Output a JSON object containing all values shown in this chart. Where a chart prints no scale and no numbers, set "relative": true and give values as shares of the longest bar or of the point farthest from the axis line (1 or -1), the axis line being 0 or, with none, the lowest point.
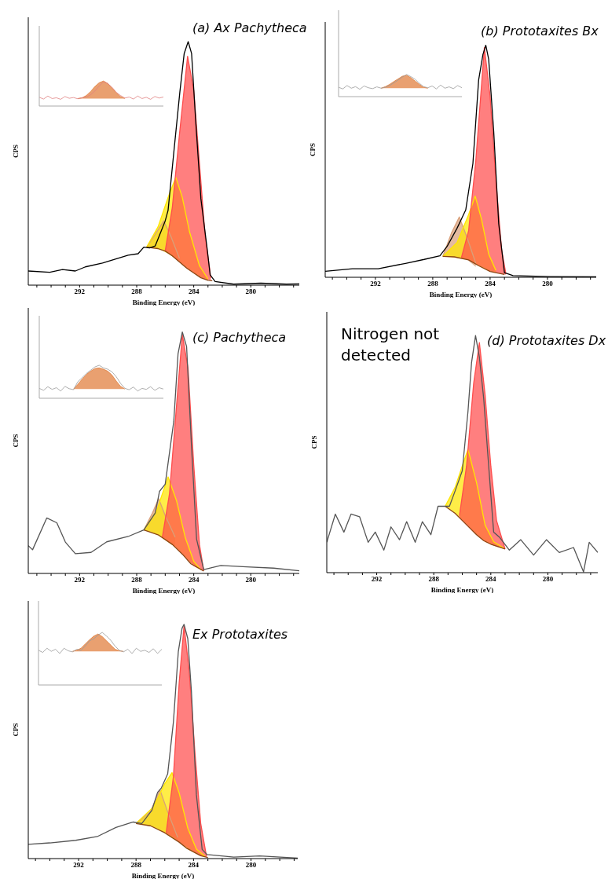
{
  "chart_data": [
    {
      "type": "line",
      "title": "(a) Ax Pachytheca",
      "xlabel": "Binding Energy (eV)",
      "ylabel": "CPS",
      "relative": true,
      "xlim": [
        295.6,
        276.6
      ],
      "xticks": [
        {
          "value": 295,
          "label": null
        },
        {
          "value": 294,
          "label": null
        },
        {
          "value": 293,
          "label": null
        },
        292,
        {
          "value": 291,
          "label": null
        },
        {
          "value": 290,
          "label": null
        },
        {
          "value": 289,
          "label": null
        },
        288,
        {
          "value": 287,
          "label": null
        },
        {
          "value": 286,
          "label": null
        },
        {
          "value": 285,
          "label": null
        },
        284,
        {
          "value": 283,
          "label": null
        },
        {
          "value": 282,
          "label": null
        },
        {
          "value": 281,
          "label": null
        },
        280,
        {
          "value": 279,
          "label": null
        },
        {
          "value": 278,
          "label": null
        },
        {
          "value": 277,
          "label": null
        }
      ],
      "series": [
        {
          "color": "#d9a07a",
          "x": [
            287.3,
            286.8,
            286.1,
            285.6,
            285.0
          ],
          "values": [
            0.156,
            0.2,
            0.264,
            0.2,
            0.11
          ],
          "upper": [
            0.156,
            0.2,
            0.264,
            0.2,
            0.11
          ],
          "lower": [
            0.156,
            0.153,
            0.14,
            0.124,
            0.095
          ]
        },
        {
          "color": "#ffe600",
          "x": [
            287.3,
            286.5,
            285.8,
            285.26,
            284.8,
            284.3,
            283.6,
            283.0
          ],
          "values": [
            0.156,
            0.24,
            0.36,
            0.443,
            0.36,
            0.22,
            0.08,
            0.025
          ],
          "upper": [
            0.156,
            0.24,
            0.36,
            0.443,
            0.36,
            0.22,
            0.08,
            0.025
          ],
          "lower": [
            0.156,
            0.15,
            0.13,
            0.108,
            0.085,
            0.062,
            0.034,
            0.02
          ]
        },
        {
          "color": "#ff4d4d",
          "x": [
            286.0,
            285.5,
            285.0,
            284.43,
            284.0,
            283.6,
            283.2,
            282.8
          ],
          "values": [
            0.14,
            0.32,
            0.62,
            0.94,
            0.8,
            0.5,
            0.2,
            0.03
          ],
          "upper": [
            0.14,
            0.32,
            0.62,
            0.94,
            0.8,
            0.5,
            0.2,
            0.03
          ],
          "lower": [
            0.14,
            0.12,
            0.095,
            0.067,
            0.05,
            0.034,
            0.024,
            0.019
          ]
        },
        {
          "color": "#8b4513",
          "x": [
            287.3,
            286.5,
            286,
            285.5,
            285,
            284.5,
            284,
            283.5,
            283,
            282.7
          ],
          "values": [
            0.156,
            0.15,
            0.14,
            0.12,
            0.095,
            0.07,
            0.05,
            0.03,
            0.02,
            0.018
          ]
        },
        {
          "color": "#000000",
          "x": [
            295.6,
            294.1,
            293.2,
            292.3,
            291.6,
            290.4,
            289.5,
            288.6,
            287.9,
            287.5,
            287.1,
            286.7,
            286.4,
            286.0,
            285.8,
            285.35,
            284.98,
            284.67,
            284.39,
            284.15,
            283.87,
            283.5,
            283.04,
            282.85,
            282.5,
            281.2,
            279.3,
            277.5,
            276.6
          ],
          "values": [
            0.058,
            0.053,
            0.064,
            0.058,
            0.075,
            0.091,
            0.107,
            0.123,
            0.129,
            0.156,
            0.153,
            0.161,
            0.205,
            0.264,
            0.307,
            0.573,
            0.789,
            0.951,
            1.0,
            0.951,
            0.681,
            0.356,
            0.14,
            0.042,
            0.015,
            0.004,
            0.008,
            0.004,
            0.005
          ]
        }
      ]
    },
    {
      "type": "line",
      "relative": true,
      "categories": [
        null,
        null,
        null,
        null,
        null,
        null,
        null,
        null,
        null,
        null,
        null,
        null,
        null,
        null,
        null,
        null,
        null,
        null,
        null,
        null,
        null,
        null,
        null,
        null,
        null,
        null,
        null,
        null,
        null,
        null
      ],
      "series": [
        {
          "color": "#e07b39",
          "values": [
            null,
            null,
            null,
            null,
            null,
            null,
            null,
            null,
            null,
            0.3,
            0.33,
            0.42,
            0.58,
            0.78,
            0.93,
            1.0,
            0.9,
            0.72,
            0.52,
            0.38,
            0.3,
            null,
            null,
            null,
            null,
            null,
            null,
            null,
            null,
            null
          ],
          "upper": [
            null,
            null,
            null,
            null,
            null,
            null,
            null,
            null,
            null,
            0.3,
            0.33,
            0.42,
            0.58,
            0.78,
            0.93,
            1.0,
            0.9,
            0.72,
            0.52,
            0.38,
            0.3,
            null,
            null,
            null,
            null,
            null,
            null,
            null,
            null,
            null
          ],
          "lower": [
            null,
            null,
            null,
            null,
            null,
            null,
            null,
            null,
            null,
            0.3,
            0.3,
            0.3,
            0.3,
            0.3,
            0.3,
            0.3,
            0.3,
            0.3,
            0.3,
            0.3,
            0.3,
            null,
            null,
            null,
            null,
            null,
            null,
            null,
            null,
            null
          ]
        },
        {
          "color": "#e08080",
          "values": [
            0.35,
            0.28,
            0.4,
            0.3,
            0.33,
            0.27,
            0.38,
            0.31,
            0.34,
            0.29,
            0.33,
            0.36,
            0.45,
            0.6,
            0.8,
            0.97,
            0.9,
            0.75,
            0.55,
            0.42,
            0.32,
            0.36,
            0.28,
            0.4,
            0.3,
            0.35,
            0.27,
            0.38,
            0.32,
            0.36
          ]
        }
      ]
    },
    {
      "type": "line",
      "title": "(b) Prototaxites Bx",
      "xlabel": "Binding Energy (eV)",
      "ylabel": "CPS",
      "relative": true,
      "xlim": [
        295.5,
        276.6
      ],
      "xticks": [
        {
          "value": 295,
          "label": null
        },
        {
          "value": 294,
          "label": null
        },
        {
          "value": 293,
          "label": null
        },
        292,
        {
          "value": 291,
          "label": null
        },
        {
          "value": 290,
          "label": null
        },
        {
          "value": 289,
          "label": null
        },
        288,
        {
          "value": 287,
          "label": null
        },
        {
          "value": 286,
          "label": null
        },
        {
          "value": 285,
          "label": null
        },
        284,
        {
          "value": 283,
          "label": null
        },
        {
          "value": 282,
          "label": null
        },
        {
          "value": 281,
          "label": null
        },
        280,
        {
          "value": 279,
          "label": null
        },
        {
          "value": 278,
          "label": null
        },
        {
          "value": 277,
          "label": null
        }
      ],
      "series": [
        {
          "color": "#d9a07a",
          "x": [
            287.3,
            286.7,
            286.15,
            285.6,
            285.0
          ],
          "values": [
            0.09,
            0.19,
            0.26,
            0.17,
            0.06
          ],
          "upper": [
            0.09,
            0.19,
            0.26,
            0.17,
            0.06
          ],
          "lower": [
            0.09,
            0.088,
            0.082,
            0.076,
            0.045
          ]
        },
        {
          "color": "#ffe600",
          "x": [
            287.3,
            286.3,
            285.5,
            285.04,
            284.6,
            284.1,
            283.6
          ],
          "values": [
            0.09,
            0.15,
            0.27,
            0.35,
            0.25,
            0.1,
            0.03
          ],
          "upper": [
            0.09,
            0.15,
            0.27,
            0.35,
            0.25,
            0.1,
            0.03
          ],
          "lower": [
            0.09,
            0.085,
            0.075,
            0.058,
            0.044,
            0.028,
            0.02
          ]
        },
        {
          "color": "#ff4d4d",
          "x": [
            286.0,
            285.5,
            285.0,
            284.4,
            284.0,
            283.6,
            283.2,
            282.9
          ],
          "values": [
            0.085,
            0.2,
            0.5,
            0.99,
            0.78,
            0.42,
            0.12,
            0.015
          ],
          "upper": [
            0.085,
            0.2,
            0.5,
            0.99,
            0.78,
            0.42,
            0.12,
            0.015
          ],
          "lower": [
            0.082,
            0.075,
            0.057,
            0.04,
            0.025,
            0.02,
            0.014,
            0.012
          ]
        },
        {
          "color": "#8b4513",
          "x": [
            287.3,
            286.5,
            285.5,
            284.8,
            284,
            283
          ],
          "values": [
            0.09,
            0.088,
            0.075,
            0.05,
            0.025,
            0.012
          ]
        },
        {
          "color": "#000000",
          "x": [
            295.5,
            293.6,
            291.8,
            289.9,
            288.6,
            287.5,
            287.0,
            286.3,
            285.7,
            285.2,
            284.8,
            284.5,
            284.3,
            284.1,
            283.75,
            283.4,
            283.0,
            282.4,
            279.8,
            276.6
          ],
          "values": [
            0.026,
            0.037,
            0.037,
            0.06,
            0.077,
            0.093,
            0.133,
            0.212,
            0.29,
            0.49,
            0.85,
            0.96,
            1.0,
            0.94,
            0.63,
            0.23,
            0.02,
            0.007,
            0.003,
            0.002
          ]
        }
      ]
    },
    {
      "type": "line",
      "relative": true,
      "categories": [
        null,
        null,
        null,
        null,
        null,
        null,
        null,
        null,
        null,
        null,
        null,
        null,
        null,
        null,
        null,
        null,
        null,
        null,
        null,
        null,
        null,
        null,
        null,
        null,
        null,
        null,
        null,
        null,
        null,
        null
      ],
      "series": [
        {
          "color": "#e07b39",
          "values": [
            null,
            null,
            null,
            null,
            null,
            null,
            null,
            null,
            null,
            null,
            0.38,
            0.45,
            0.55,
            0.68,
            0.8,
            0.92,
            0.96,
            0.85,
            0.7,
            0.55,
            0.42,
            0.38,
            null,
            null,
            null,
            null,
            null,
            null,
            null,
            null
          ],
          "upper": [
            null,
            null,
            null,
            null,
            null,
            null,
            null,
            null,
            null,
            null,
            0.38,
            0.45,
            0.55,
            0.68,
            0.8,
            0.92,
            0.96,
            0.85,
            0.7,
            0.55,
            0.42,
            0.38,
            null,
            null,
            null,
            null,
            null,
            null,
            null,
            null
          ],
          "lower": [
            null,
            null,
            null,
            null,
            null,
            null,
            null,
            null,
            null,
            null,
            0.38,
            0.38,
            0.38,
            0.38,
            0.38,
            0.38,
            0.38,
            0.38,
            0.38,
            0.38,
            0.38,
            0.38,
            null,
            null,
            null,
            null,
            null,
            null,
            null,
            null
          ]
        },
        {
          "color": "#999999",
          "values": [
            0.42,
            0.35,
            0.5,
            0.38,
            0.45,
            0.33,
            0.48,
            0.4,
            0.36,
            0.44,
            0.38,
            0.42,
            0.5,
            0.62,
            0.75,
            0.88,
            1.0,
            0.9,
            0.78,
            0.6,
            0.45,
            0.4,
            0.48,
            0.35,
            0.52,
            0.38,
            0.44,
            0.36,
            0.5,
            0.4
          ]
        }
      ]
    },
    {
      "type": "line",
      "title": "(c) Pachytheca",
      "xlabel": "Binding Energy (eV)",
      "ylabel": "CPS",
      "relative": true,
      "xlim": [
        295.6,
        276.6
      ],
      "xticks": [
        {
          "value": 295,
          "label": null
        },
        {
          "value": 294,
          "label": null
        },
        {
          "value": 293,
          "label": null
        },
        292,
        {
          "value": 291,
          "label": null
        },
        {
          "value": 290,
          "label": null
        },
        {
          "value": 289,
          "label": null
        },
        288,
        {
          "value": 287,
          "label": null
        },
        {
          "value": 286,
          "label": null
        },
        {
          "value": 285,
          "label": null
        },
        284,
        {
          "value": 283,
          "label": null
        },
        {
          "value": 282,
          "label": null
        },
        {
          "value": 281,
          "label": null
        },
        280,
        {
          "value": 279,
          "label": null
        },
        {
          "value": 278,
          "label": null
        },
        {
          "value": 277,
          "label": null
        }
      ],
      "series": [
        {
          "color": "#d9a07a",
          "x": [
            287.5,
            286.9,
            286.46,
            286.0,
            285.3
          ],
          "values": [
            0.18,
            0.25,
            0.31,
            0.24,
            0.15
          ],
          "upper": [
            0.18,
            0.25,
            0.31,
            0.24,
            0.15
          ],
          "lower": [
            0.18,
            0.17,
            0.16,
            0.14,
            0.11
          ]
        },
        {
          "color": "#ffe600",
          "x": [
            287.5,
            286.6,
            285.8,
            285.2,
            284.6,
            284.0,
            283.5
          ],
          "values": [
            0.18,
            0.26,
            0.4,
            0.3,
            0.15,
            0.05,
            0.015
          ],
          "upper": [
            0.18,
            0.26,
            0.4,
            0.3,
            0.15,
            0.05,
            0.015
          ],
          "lower": [
            0.18,
            0.162,
            0.13,
            0.105,
            0.068,
            0.033,
            0.014
          ]
        },
        {
          "color": "#ff4d4d",
          "x": [
            286.2,
            285.7,
            285.2,
            284.8,
            284.4,
            284.0,
            283.6,
            283.3
          ],
          "values": [
            0.15,
            0.33,
            0.7,
            0.99,
            0.85,
            0.45,
            0.12,
            0.012
          ],
          "upper": [
            0.15,
            0.33,
            0.7,
            0.99,
            0.85,
            0.45,
            0.12,
            0.012
          ],
          "lower": [
            0.148,
            0.128,
            0.105,
            0.08,
            0.055,
            0.03,
            0.018,
            0.01
          ]
        },
        {
          "color": "#8b4513",
          "x": [
            287.5,
            286.5,
            285.5,
            284.8,
            284.2,
            283.3
          ],
          "values": [
            0.18,
            0.16,
            0.12,
            0.08,
            0.04,
            0.01
          ]
        },
        {
          "color": "#555555",
          "x": [
            295.6,
            295.3,
            294.3,
            293.6,
            293.0,
            292.3,
            291.2,
            290.1,
            288.6,
            287.5,
            286.7,
            286.4,
            286.0,
            285.4,
            285.1,
            284.8,
            284.5,
            284.15,
            283.8,
            283.3,
            282.1,
            280.3,
            278.4,
            276.6
          ],
          "values": [
            0.115,
            0.098,
            0.23,
            0.21,
            0.13,
            0.082,
            0.087,
            0.131,
            0.153,
            0.18,
            0.25,
            0.34,
            0.37,
            0.63,
            0.91,
            1.0,
            0.94,
            0.52,
            0.142,
            0.016,
            0.033,
            0.027,
            0.022,
            0.011
          ]
        }
      ]
    },
    {
      "type": "line",
      "relative": true,
      "categories": [
        null,
        null,
        null,
        null,
        null,
        null,
        null,
        null,
        null,
        null,
        null,
        null,
        null,
        null,
        null,
        null,
        null,
        null,
        null,
        null,
        null,
        null,
        null,
        null,
        null,
        null,
        null,
        null,
        null,
        null
      ],
      "series": [
        {
          "color": "#e07b39",
          "values": [
            null,
            null,
            null,
            null,
            null,
            null,
            null,
            null,
            0.28,
            0.42,
            0.58,
            0.72,
            0.82,
            0.9,
            0.92,
            0.88,
            0.82,
            0.7,
            0.52,
            0.36,
            0.28,
            null,
            null,
            null,
            null,
            null,
            null,
            null,
            null,
            null
          ],
          "upper": [
            null,
            null,
            null,
            null,
            null,
            null,
            null,
            null,
            0.28,
            0.42,
            0.58,
            0.72,
            0.82,
            0.9,
            0.92,
            0.88,
            0.82,
            0.7,
            0.52,
            0.36,
            0.28,
            null,
            null,
            null,
            null,
            null,
            null,
            null,
            null,
            null
          ],
          "lower": [
            null,
            null,
            null,
            null,
            null,
            null,
            null,
            null,
            0.28,
            0.28,
            0.28,
            0.28,
            0.28,
            0.28,
            0.28,
            0.28,
            0.28,
            0.28,
            0.28,
            0.28,
            0.28,
            null,
            null,
            null,
            null,
            null,
            null,
            null,
            null,
            null
          ]
        },
        {
          "color": "#999999",
          "values": [
            0.3,
            0.24,
            0.35,
            0.27,
            0.32,
            0.22,
            0.36,
            0.29,
            0.26,
            0.5,
            0.62,
            0.75,
            0.85,
            0.95,
            1.0,
            0.92,
            0.88,
            0.8,
            0.65,
            0.45,
            0.3,
            0.26,
            0.34,
            0.22,
            0.3,
            0.27,
            0.35,
            0.24,
            0.32,
            0.28
          ]
        }
      ]
    },
    {
      "type": "line",
      "title": "(d) Prototaxites Dx",
      "xlabel": "Binding Energy (eV)",
      "ylabel": "CPS",
      "relative": true,
      "xlim": [
        295.5,
        276.5
      ],
      "annotations": [
        "Nitrogen not detected"
      ],
      "xticks": [
        {
          "value": 295,
          "label": null
        },
        {
          "value": 294,
          "label": null
        },
        {
          "value": 293,
          "label": null
        },
        292,
        {
          "value": 291,
          "label": null
        },
        {
          "value": 290,
          "label": null
        },
        {
          "value": 289,
          "label": null
        },
        288,
        {
          "value": 287,
          "label": null
        },
        {
          "value": 286,
          "label": null
        },
        {
          "value": 285,
          "label": null
        },
        284,
        {
          "value": 283,
          "label": null
        },
        {
          "value": 282,
          "label": null
        },
        {
          "value": 281,
          "label": null
        },
        280,
        {
          "value": 279,
          "label": null
        },
        {
          "value": 278,
          "label": null
        },
        {
          "value": 277,
          "label": null
        }
      ],
      "series": [
        {
          "color": "#ffe600",
          "x": [
            287.2,
            286.5,
            286.0,
            285.6,
            285.0,
            284.4,
            283.8,
            283.0
          ],
          "values": [
            0.28,
            0.36,
            0.45,
            0.52,
            0.38,
            0.2,
            0.13,
            0.1
          ],
          "upper": [
            0.28,
            0.36,
            0.45,
            0.52,
            0.38,
            0.2,
            0.13,
            0.1
          ],
          "lower": [
            0.28,
            0.25,
            0.22,
            0.2,
            0.16,
            0.13,
            0.115,
            0.1
          ]
        },
        {
          "color": "#ff4d4d",
          "x": [
            286.2,
            285.7,
            285.2,
            284.8,
            284.4,
            284.0,
            283.6,
            283.0
          ],
          "values": [
            0.24,
            0.45,
            0.8,
            0.97,
            0.75,
            0.45,
            0.22,
            0.1
          ],
          "upper": [
            0.24,
            0.45,
            0.8,
            0.97,
            0.75,
            0.45,
            0.22,
            0.1
          ],
          "lower": [
            0.23,
            0.2,
            0.17,
            0.15,
            0.13,
            0.12,
            0.11,
            0.1
          ]
        },
        {
          "color": "#8b4513",
          "x": [
            287.2,
            286.5,
            286.0,
            285.5,
            285.0,
            284.5,
            284.0,
            283.5,
            283.0
          ],
          "values": [
            0.28,
            0.25,
            0.22,
            0.19,
            0.16,
            0.135,
            0.12,
            0.11,
            0.1
          ]
        },
        {
          "color": "#555555",
          "x": [
            295.5,
            294.9,
            294.3,
            293.8,
            293.2,
            292.6,
            292.1,
            291.5,
            291.0,
            290.4,
            289.9,
            289.3,
            288.8,
            288.2,
            287.7,
            286.9,
            286.5,
            286.0,
            285.6,
            285.35,
            285.07,
            284.8,
            284.5,
            284.1,
            283.8,
            283.4,
            282.7,
            281.9,
            281.0,
            280.1,
            279.2,
            278.2,
            277.5,
            277.1,
            276.5
          ],
          "values": [
            0.128,
            0.247,
            0.171,
            0.247,
            0.236,
            0.128,
            0.171,
            0.095,
            0.193,
            0.139,
            0.215,
            0.128,
            0.215,
            0.16,
            0.28,
            0.28,
            0.345,
            0.43,
            0.68,
            0.886,
            1.0,
            0.908,
            0.735,
            0.41,
            0.171,
            0.15,
            0.095,
            0.139,
            0.074,
            0.139,
            0.085,
            0.106,
            0.003,
            0.128,
            0.085
          ]
        }
      ]
    },
    {
      "type": "line",
      "title": "Ex Prototaxites",
      "xlabel": "Binding Energy (eV)",
      "ylabel": "CPS",
      "relative": true,
      "xlim": [
        295.5,
        276.75
      ],
      "xticks": [
        {
          "value": 295,
          "label": null
        },
        {
          "value": 294,
          "label": null
        },
        {
          "value": 293,
          "label": null
        },
        292,
        {
          "value": 291,
          "label": null
        },
        {
          "value": 290,
          "label": null
        },
        {
          "value": 289,
          "label": null
        },
        288,
        {
          "value": 287,
          "label": null
        },
        {
          "value": 286,
          "label": null
        },
        {
          "value": 285,
          "label": null
        },
        284,
        {
          "value": 283,
          "label": null
        },
        {
          "value": 282,
          "label": null
        },
        {
          "value": 281,
          "label": null
        },
        280,
        {
          "value": 279,
          "label": null
        },
        {
          "value": 278,
          "label": null
        },
        {
          "value": 277,
          "label": null
        }
      ],
      "series": [
        {
          "color": "#d9a07a",
          "x": [
            288.0,
            287.0,
            286.34,
            285.8,
            285.1
          ],
          "values": [
            0.15,
            0.2,
            0.294,
            0.2,
            0.09
          ],
          "upper": [
            0.15,
            0.2,
            0.294,
            0.2,
            0.09
          ],
          "lower": [
            0.15,
            0.14,
            0.123,
            0.1,
            0.073
          ]
        },
        {
          "color": "#ffe600",
          "x": [
            288.0,
            286.8,
            286.0,
            285.5,
            285.0,
            284.4,
            283.8,
            283.2
          ],
          "values": [
            0.15,
            0.22,
            0.32,
            0.367,
            0.28,
            0.13,
            0.04,
            0.009
          ],
          "upper": [
            0.15,
            0.22,
            0.32,
            0.367,
            0.28,
            0.13,
            0.04,
            0.009
          ],
          "lower": [
            0.15,
            0.135,
            0.11,
            0.09,
            0.07,
            0.04,
            0.02,
            0.008
          ]
        },
        {
          "color": "#ff4d4d",
          "x": [
            285.9,
            285.4,
            285.0,
            284.66,
            284.3,
            283.9,
            283.5,
            283.1
          ],
          "values": [
            0.11,
            0.35,
            0.75,
            0.994,
            0.8,
            0.45,
            0.15,
            0.01
          ],
          "upper": [
            0.11,
            0.35,
            0.75,
            0.994,
            0.8,
            0.45,
            0.15,
            0.01
          ],
          "lower": [
            0.107,
            0.09,
            0.07,
            0.055,
            0.04,
            0.025,
            0.012,
            0.006
          ]
        },
        {
          "color": "#8b4513",
          "x": [
            288.0,
            287.0,
            286.0,
            285.0,
            284.5,
            283.5,
            283.0
          ],
          "values": [
            0.15,
            0.14,
            0.11,
            0.07,
            0.045,
            0.012,
            0.005
          ]
        },
        {
          "color": "#555555",
          "x": [
            295.5,
            294.0,
            292.2,
            290.7,
            289.4,
            288.2,
            287.6,
            286.9,
            286.5,
            286.25,
            285.8,
            285.4,
            285.06,
            284.8,
            284.66,
            284.4,
            284.15,
            283.8,
            283.4,
            283.05,
            281.2,
            279.4,
            276.75
          ],
          "values": [
            0.061,
            0.067,
            0.078,
            0.094,
            0.133,
            0.156,
            0.15,
            0.206,
            0.283,
            0.3,
            0.361,
            0.583,
            0.883,
            0.983,
            1.0,
            0.939,
            0.717,
            0.272,
            0.039,
            0.017,
            0.006,
            0.011,
            0.002
          ]
        }
      ]
    },
    {
      "type": "line",
      "relative": true,
      "categories": [
        null,
        null,
        null,
        null,
        null,
        null,
        null,
        null,
        null,
        null,
        null,
        null,
        null,
        null,
        null,
        null,
        null,
        null,
        null,
        null,
        null,
        null,
        null,
        null,
        null,
        null,
        null,
        null,
        null,
        null
      ],
      "series": [
        {
          "color": "#e07b39",
          "values": [
            null,
            null,
            null,
            null,
            null,
            null,
            null,
            null,
            0.64,
            0.66,
            0.7,
            0.78,
            0.86,
            0.93,
            0.97,
            0.92,
            0.84,
            0.76,
            0.68,
            0.65,
            0.64,
            null,
            null,
            null,
            null,
            null,
            null,
            null,
            null,
            null
          ],
          "upper": [
            null,
            null,
            null,
            null,
            null,
            null,
            null,
            null,
            0.64,
            0.66,
            0.7,
            0.78,
            0.86,
            0.93,
            0.97,
            0.92,
            0.84,
            0.76,
            0.68,
            0.65,
            0.64,
            null,
            null,
            null,
            null,
            null,
            null,
            null,
            null,
            null
          ],
          "lower": [
            null,
            null,
            null,
            null,
            null,
            null,
            null,
            null,
            0.64,
            0.64,
            0.64,
            0.64,
            0.64,
            0.64,
            0.64,
            0.64,
            0.64,
            0.64,
            0.64,
            0.64,
            0.64,
            null,
            null,
            null,
            null,
            null,
            null,
            null,
            null,
            null
          ]
        },
        {
          "color": "#999999",
          "values": [
            0.66,
            0.62,
            0.7,
            0.64,
            0.68,
            0.6,
            0.7,
            0.65,
            0.63,
            0.68,
            0.66,
            0.74,
            0.84,
            0.88,
            0.95,
            1.0,
            0.93,
            0.85,
            0.74,
            0.66,
            0.63,
            0.68,
            0.6,
            0.7,
            0.64,
            0.66,
            0.62,
            0.69,
            0.6,
            0.68
          ]
        }
      ]
    }
  ]
}
